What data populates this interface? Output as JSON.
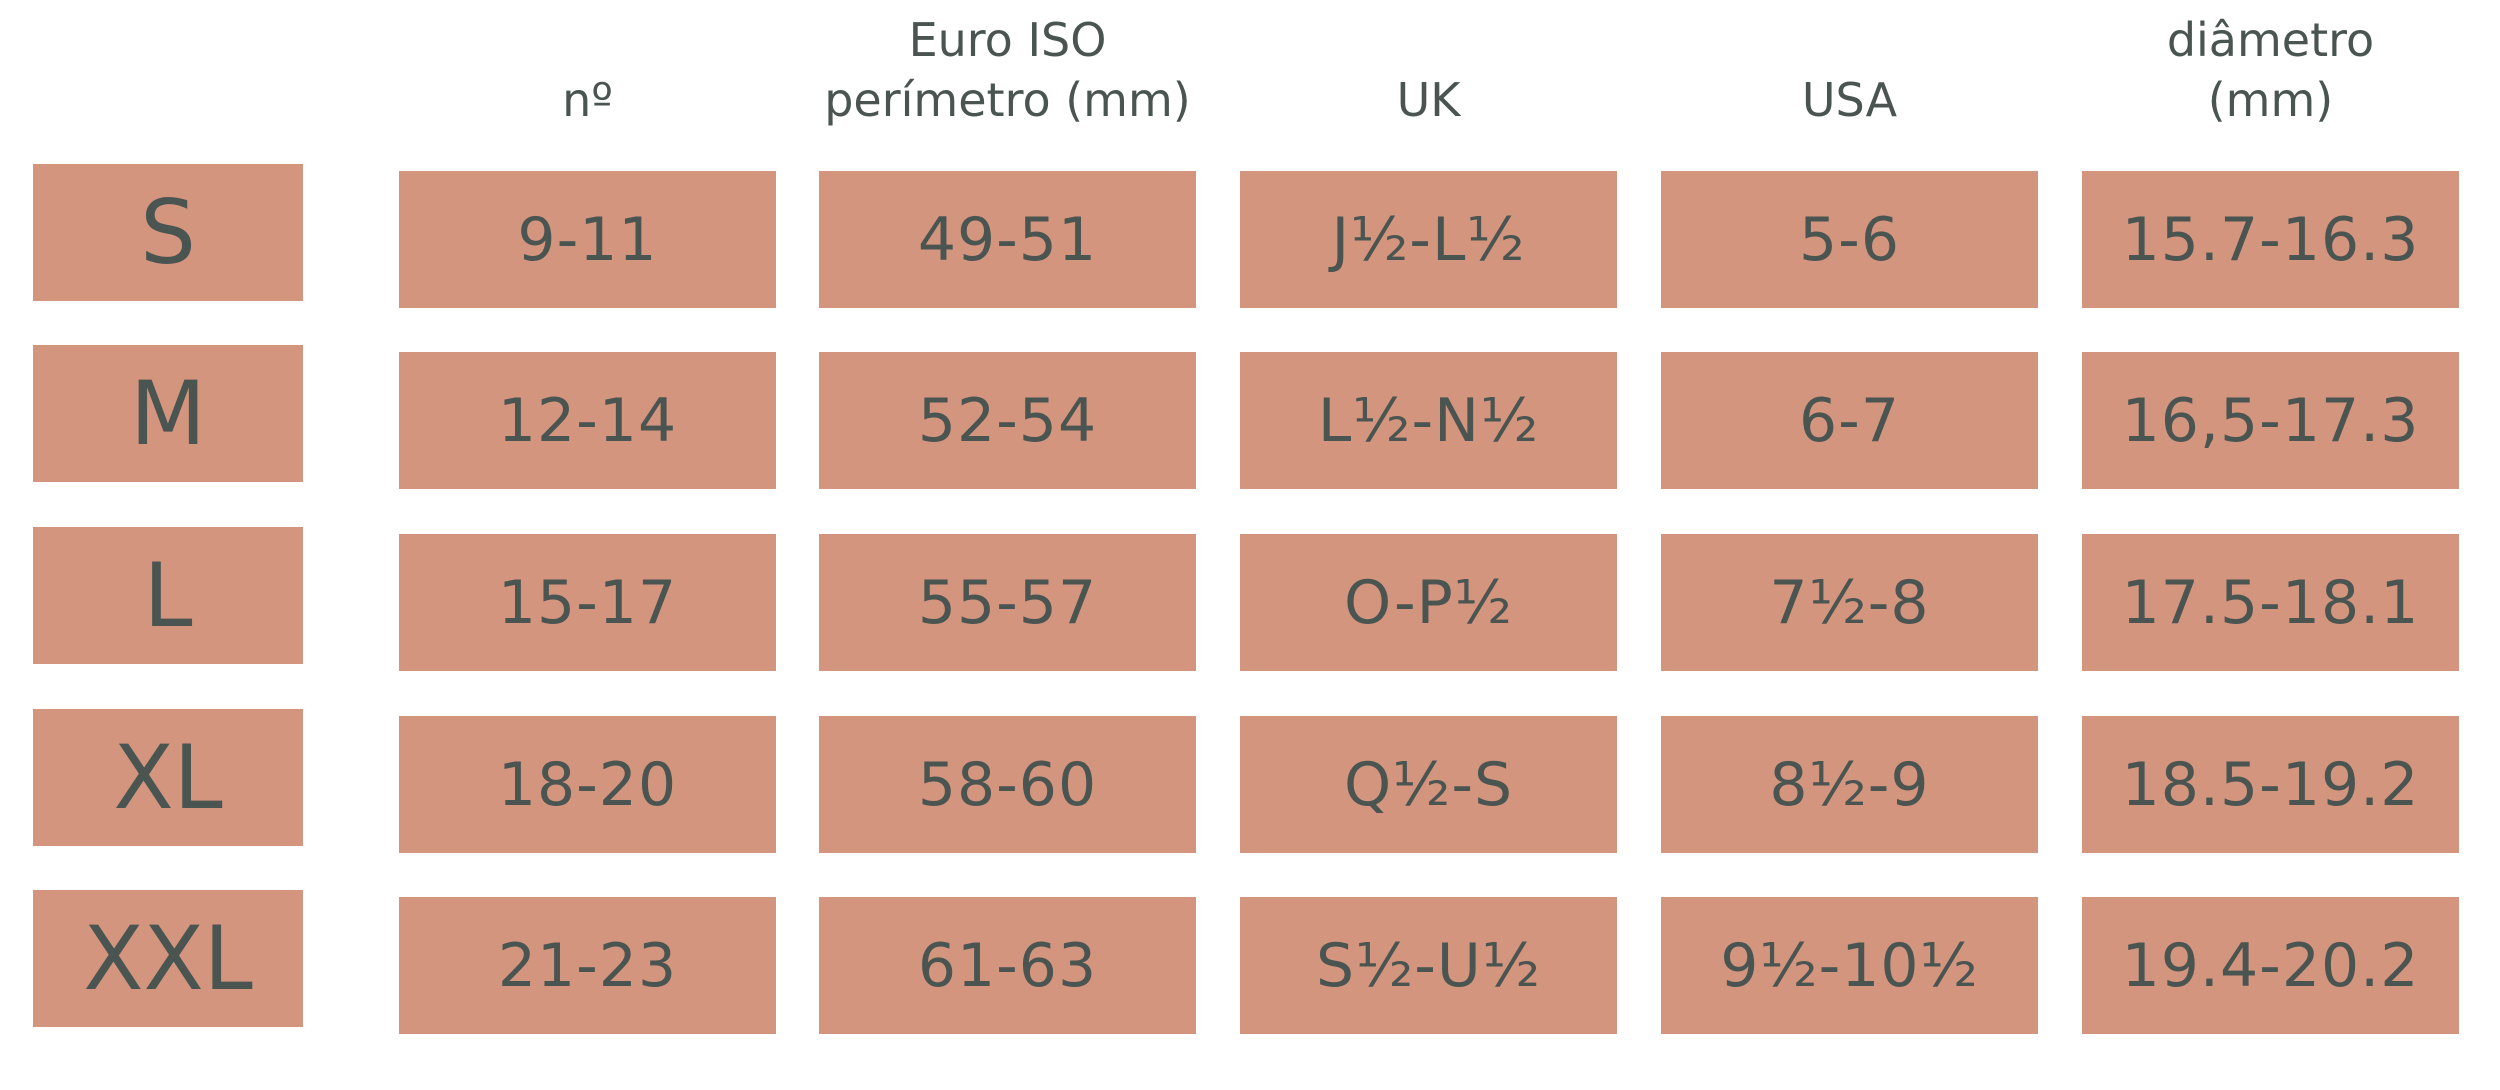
{
  "table": {
    "columns": [
      {
        "lines": [
          "nº"
        ]
      },
      {
        "lines": [
          "Euro ISO",
          "perímetro (mm)"
        ]
      },
      {
        "lines": [
          "UK"
        ]
      },
      {
        "lines": [
          "USA"
        ]
      },
      {
        "lines": [
          "diâmetro",
          "(mm)"
        ]
      }
    ],
    "rows": [
      {
        "size": "S",
        "cells": [
          "9-11",
          "49-51",
          "J½-L½",
          "5-6",
          "15.7-16.3"
        ]
      },
      {
        "size": "M",
        "cells": [
          "12-14",
          "52-54",
          "L½-N½",
          "6-7",
          "16,5-17.3"
        ]
      },
      {
        "size": "L",
        "cells": [
          "15-17",
          "55-57",
          "O-P½",
          "7½-8",
          "17.5-18.1"
        ]
      },
      {
        "size": "XL",
        "cells": [
          "18-20",
          "58-60",
          "Q½-S",
          "8½-9",
          "18.5-19.2"
        ]
      },
      {
        "size": "XXL",
        "cells": [
          "21-23",
          "61-63",
          "S½-U½",
          "9½-10½",
          "19.4-20.2"
        ]
      }
    ]
  }
}
